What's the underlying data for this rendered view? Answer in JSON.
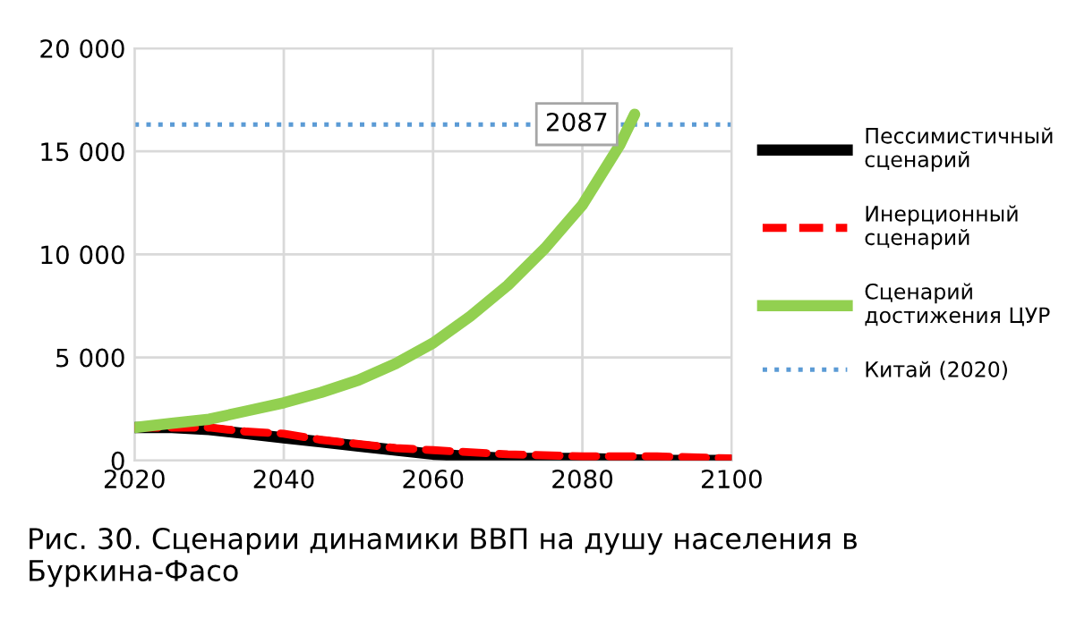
{
  "chart_data": {
    "type": "line",
    "xlim": [
      2020,
      2100
    ],
    "xticks": [
      2020,
      2040,
      2060,
      2080,
      2100
    ],
    "ylim": [
      0,
      20000
    ],
    "yticks": [
      0,
      {
        "value": 5000,
        "label": "5 000"
      },
      {
        "value": 10000,
        "label": "10 000"
      },
      {
        "value": 15000,
        "label": "15 000"
      },
      {
        "value": 20000,
        "label": "20 000"
      }
    ],
    "grid": true,
    "legend": "right",
    "series": [
      {
        "name": "Пессимистичный сценарий",
        "color": "#000000",
        "line_style": "solid",
        "x": [
          2020,
          2025,
          2030,
          2035,
          2040,
          2045,
          2050,
          2055,
          2060,
          2065,
          2070,
          2080,
          2090,
          2100
        ],
        "values": [
          1600,
          1600,
          1500,
          1300,
          1100,
          900,
          700,
          500,
          300,
          200,
          100,
          100,
          0,
          0
        ]
      },
      {
        "name": "Инерционный сценарий",
        "color": "#ff0000",
        "line_style": "dashed",
        "x": [
          2020,
          2025,
          2030,
          2035,
          2040,
          2045,
          2050,
          2055,
          2060,
          2065,
          2070,
          2080,
          2090,
          2100
        ],
        "values": [
          1600,
          1600,
          1600,
          1400,
          1300,
          1000,
          800,
          600,
          500,
          400,
          300,
          200,
          200,
          100
        ]
      },
      {
        "name": "Сценарий достижения ЦУР",
        "color": "#92d050",
        "line_style": "solid",
        "x": [
          2020,
          2025,
          2030,
          2035,
          2040,
          2045,
          2050,
          2055,
          2060,
          2065,
          2070,
          2075,
          2080,
          2085,
          2087
        ],
        "values": [
          1600,
          1800,
          2000,
          2400,
          2800,
          3300,
          3900,
          4700,
          5700,
          7000,
          8500,
          10300,
          12400,
          15300,
          16800
        ]
      }
    ],
    "ref_lines": [
      {
        "axis": "y",
        "value": 16300,
        "label": "Китай (2020)",
        "color": "#5b9bd5",
        "line_style": "dotted"
      }
    ],
    "annotations": [
      {
        "text": "2087",
        "x": 2087,
        "y": 16800
      },
      "Рис. 30. Сценарии динамики ВВП на душу населения в Буркина-Фасо"
    ]
  }
}
